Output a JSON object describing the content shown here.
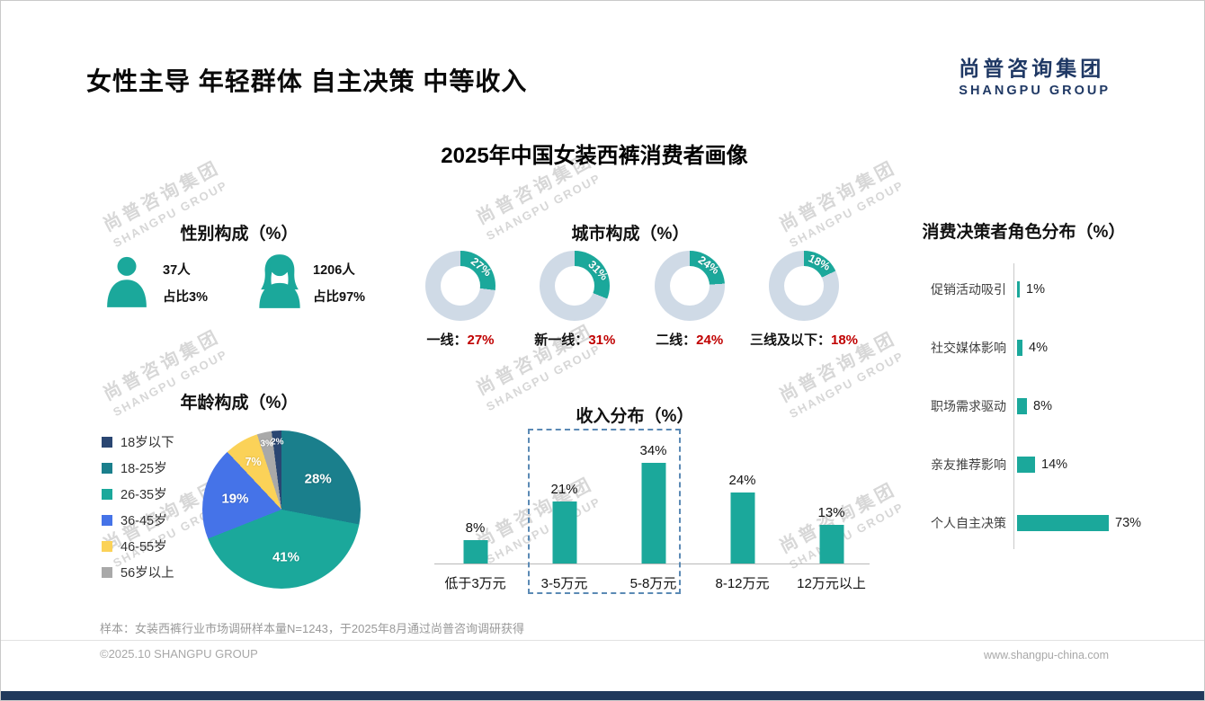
{
  "header": {
    "title": "女性主导 年轻群体 自主决策 中等收入",
    "logo_cn": "尚普咨询集团",
    "logo_en": "SHANGPU GROUP"
  },
  "main_title": "2025年中国女装西裤消费者画像",
  "watermark": {
    "cn": "尚普咨询集团",
    "en": "SHANGPU GROUP"
  },
  "colors": {
    "teal": "#1BA89B",
    "red": "#C00000",
    "navy": "#1F3864",
    "donut_rest": "#CFDAE6",
    "dash_box": "#5B8AB5"
  },
  "gender": {
    "title": "性别构成（%）",
    "male": {
      "count": "37人",
      "share": "占比3%"
    },
    "female": {
      "count": "1206人",
      "share": "占比97%"
    }
  },
  "city": {
    "title": "城市构成（%）",
    "donuts": [
      {
        "label": "一线：",
        "value": 27,
        "display": "27%"
      },
      {
        "label": "新一线：",
        "value": 31,
        "display": "31%"
      },
      {
        "label": "二线：",
        "value": 24,
        "display": "24%"
      },
      {
        "label": "三线及以下：",
        "value": 18,
        "display": "18%"
      }
    ]
  },
  "decision": {
    "title": "消费决策者角色分布（%）",
    "items": [
      {
        "label": "促销活动吸引",
        "value": 1,
        "display": "1%"
      },
      {
        "label": "社交媒体影响",
        "value": 4,
        "display": "4%"
      },
      {
        "label": "职场需求驱动",
        "value": 8,
        "display": "8%"
      },
      {
        "label": "亲友推荐影响",
        "value": 14,
        "display": "14%"
      },
      {
        "label": "个人自主决策",
        "value": 73,
        "display": "73%"
      }
    ]
  },
  "age": {
    "title": "年龄构成（%）",
    "legend": [
      {
        "label": "18岁以下",
        "color": "#2A4672"
      },
      {
        "label": "18-25岁",
        "color": "#1A7F8C"
      },
      {
        "label": "26-35岁",
        "color": "#1BA89B"
      },
      {
        "label": "36-45岁",
        "color": "#4573E8"
      },
      {
        "label": "46-55岁",
        "color": "#FBD258"
      },
      {
        "label": "56岁以上",
        "color": "#A9A9A9"
      }
    ],
    "slices": [
      {
        "label": "18-25岁",
        "value": 28,
        "display": "28%",
        "color": "#1A7F8C"
      },
      {
        "label": "26-35岁",
        "value": 41,
        "display": "41%",
        "color": "#1BA89B"
      },
      {
        "label": "36-45岁",
        "value": 19,
        "display": "19%",
        "color": "#4573E8"
      },
      {
        "label": "46-55岁",
        "value": 7,
        "display": "7%",
        "color": "#FBD258"
      },
      {
        "label": "56岁以上",
        "value": 3,
        "display": "3%",
        "color": "#A9A9A9"
      },
      {
        "label": "18岁以下",
        "value": 2,
        "display": "2%",
        "color": "#2A4672"
      }
    ]
  },
  "income": {
    "title": "收入分布（%）",
    "bars": [
      {
        "label": "低于3万元",
        "value": 8,
        "display": "8%"
      },
      {
        "label": "3-5万元",
        "value": 21,
        "display": "21%"
      },
      {
        "label": "5-8万元",
        "value": 34,
        "display": "34%"
      },
      {
        "label": "8-12万元",
        "value": 24,
        "display": "24%"
      },
      {
        "label": "12万元以上",
        "value": 13,
        "display": "13%"
      }
    ]
  },
  "footer": {
    "note": "样本：女装西裤行业市场调研样本量N=1243，于2025年8月通过尚普咨询调研获得",
    "copyright": "©2025.10 SHANGPU GROUP",
    "website": "www.shangpu-china.com"
  },
  "chart_data": [
    {
      "type": "table",
      "title": "性别构成（%）",
      "columns": [
        "性别",
        "人数",
        "占比"
      ],
      "rows": [
        [
          "男",
          "37人",
          "3%"
        ],
        [
          "女",
          "1206人",
          "97%"
        ]
      ]
    },
    {
      "type": "pie",
      "variant": "donut",
      "title": "城市构成（%）",
      "categories": [
        "一线",
        "新一线",
        "二线",
        "三线及以下"
      ],
      "values": [
        27,
        31,
        24,
        18
      ]
    },
    {
      "type": "pie",
      "title": "年龄构成（%）",
      "categories": [
        "18岁以下",
        "18-25岁",
        "26-35岁",
        "36-45岁",
        "46-55岁",
        "56岁以上"
      ],
      "values": [
        2,
        28,
        41,
        19,
        7,
        3
      ]
    },
    {
      "type": "bar",
      "title": "收入分布（%）",
      "categories": [
        "低于3万元",
        "3-5万元",
        "5-8万元",
        "8-12万元",
        "12万元以上"
      ],
      "values": [
        8,
        21,
        34,
        24,
        13
      ],
      "ylim": [
        0,
        40
      ],
      "highlight": [
        "3-5万元",
        "5-8万元"
      ]
    },
    {
      "type": "bar",
      "orientation": "horizontal",
      "title": "消费决策者角色分布（%）",
      "categories": [
        "促销活动吸引",
        "社交媒体影响",
        "职场需求驱动",
        "亲友推荐影响",
        "个人自主决策"
      ],
      "values": [
        1,
        4,
        8,
        14,
        73
      ],
      "xlim": [
        0,
        80
      ]
    }
  ]
}
